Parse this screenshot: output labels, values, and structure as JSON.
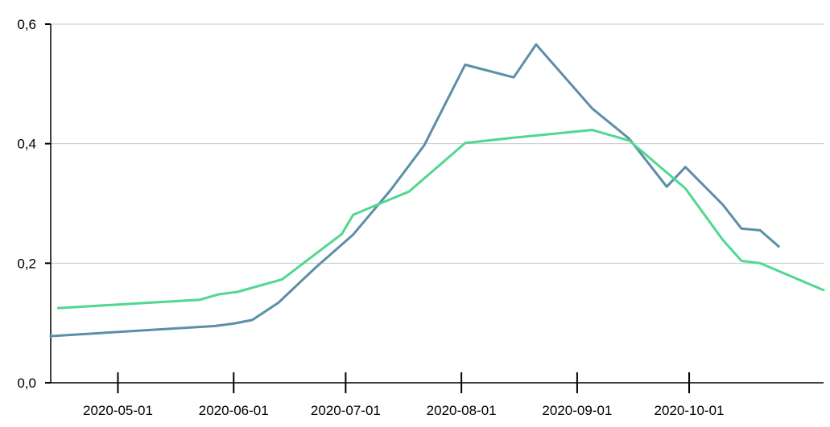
{
  "chart_data": {
    "type": "line",
    "title": "",
    "xlabel": "",
    "ylabel": "",
    "x_axis_type": "date",
    "xlim": [
      "2020-04-13",
      "2020-11-06"
    ],
    "ylim": [
      0,
      0.6
    ],
    "y_ticks": [
      {
        "value": 0.0,
        "label": "0,0"
      },
      {
        "value": 0.2,
        "label": "0,2"
      },
      {
        "value": 0.4,
        "label": "0,4"
      },
      {
        "value": 0.6,
        "label": "0,6"
      }
    ],
    "x_ticks": [
      {
        "value": "2020-05-01",
        "label": "2020-05-01"
      },
      {
        "value": "2020-06-01",
        "label": "2020-06-01"
      },
      {
        "value": "2020-07-01",
        "label": "2020-07-01"
      },
      {
        "value": "2020-08-01",
        "label": "2020-08-01"
      },
      {
        "value": "2020-09-01",
        "label": "2020-09-01"
      },
      {
        "value": "2020-10-01",
        "label": "2020-10-01"
      }
    ],
    "grid": "horizontal",
    "legend": "none",
    "series": [
      {
        "color": "#5b8fa8",
        "points": [
          {
            "x": "2020-04-13",
            "y": 0.078
          },
          {
            "x": "2020-05-27",
            "y": 0.095
          },
          {
            "x": "2020-06-01",
            "y": 0.099
          },
          {
            "x": "2020-06-06",
            "y": 0.105
          },
          {
            "x": "2020-06-13",
            "y": 0.134
          },
          {
            "x": "2020-06-23",
            "y": 0.193
          },
          {
            "x": "2020-07-03",
            "y": 0.248
          },
          {
            "x": "2020-07-13",
            "y": 0.322
          },
          {
            "x": "2020-07-22",
            "y": 0.397
          },
          {
            "x": "2020-08-02",
            "y": 0.532
          },
          {
            "x": "2020-08-15",
            "y": 0.511
          },
          {
            "x": "2020-08-21",
            "y": 0.566
          },
          {
            "x": "2020-09-05",
            "y": 0.459
          },
          {
            "x": "2020-09-15",
            "y": 0.408
          },
          {
            "x": "2020-09-25",
            "y": 0.328
          },
          {
            "x": "2020-09-30",
            "y": 0.361
          },
          {
            "x": "2020-10-10",
            "y": 0.298
          },
          {
            "x": "2020-10-15",
            "y": 0.258
          },
          {
            "x": "2020-10-20",
            "y": 0.255
          },
          {
            "x": "2020-10-25",
            "y": 0.228
          }
        ]
      },
      {
        "color": "#50d890",
        "points": [
          {
            "x": "2020-04-15",
            "y": 0.125
          },
          {
            "x": "2020-05-23",
            "y": 0.139
          },
          {
            "x": "2020-05-28",
            "y": 0.148
          },
          {
            "x": "2020-06-02",
            "y": 0.152
          },
          {
            "x": "2020-06-14",
            "y": 0.173
          },
          {
            "x": "2020-06-30",
            "y": 0.249
          },
          {
            "x": "2020-07-03",
            "y": 0.281
          },
          {
            "x": "2020-07-18",
            "y": 0.32
          },
          {
            "x": "2020-08-02",
            "y": 0.401
          },
          {
            "x": "2020-08-15",
            "y": 0.41
          },
          {
            "x": "2020-09-05",
            "y": 0.423
          },
          {
            "x": "2020-09-15",
            "y": 0.405
          },
          {
            "x": "2020-09-30",
            "y": 0.325
          },
          {
            "x": "2020-10-10",
            "y": 0.239
          },
          {
            "x": "2020-10-15",
            "y": 0.204
          },
          {
            "x": "2020-10-20",
            "y": 0.2
          },
          {
            "x": "2020-11-06",
            "y": 0.155
          }
        ]
      }
    ]
  }
}
